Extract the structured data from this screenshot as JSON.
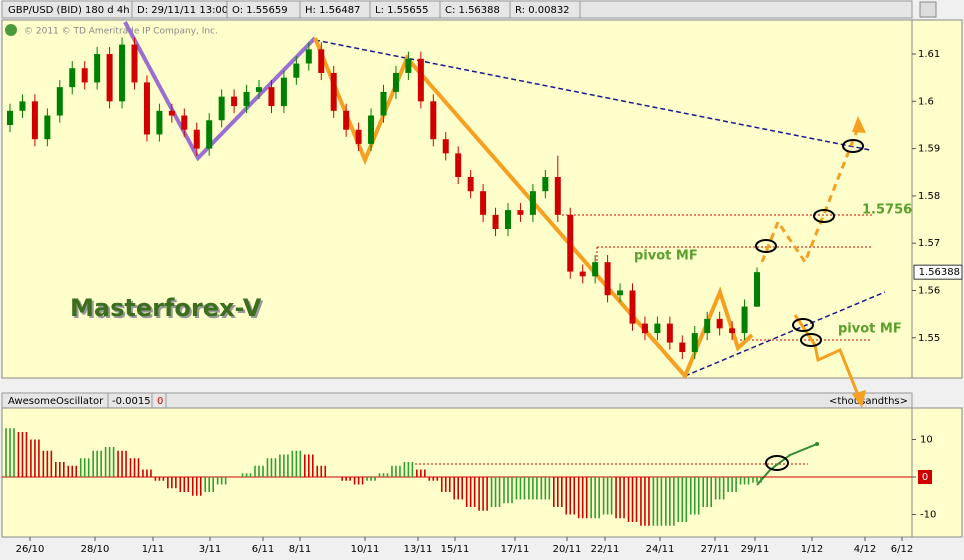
{
  "header": {
    "symbol": "GBP/USD (BID) 180 d 4h",
    "date": "D: 29/11/11 13:00",
    "open": "O: 1.55659",
    "high": "H: 1.56487",
    "low": "L: 1.55655",
    "close": "C: 1.56388",
    "range": "R: 0.00832"
  },
  "copyright": "© 2011 © TD Ameritrade IP Company, Inc.",
  "dates": [
    "26/10",
    "28/10",
    "1/11",
    "3/11",
    "6/11",
    "8/11",
    "10/11",
    "13/11",
    "15/11",
    "17/11",
    "20/11",
    "22/11",
    "24/11",
    "27/11",
    "29/11",
    "1/12",
    "4/12",
    "6/12"
  ],
  "chart_data": [
    {
      "type": "candlestick",
      "open": [
        1.595,
        1.598,
        1.6,
        1.592,
        1.597,
        1.603,
        1.607,
        1.604,
        1.61,
        1.6,
        1.612,
        1.604,
        1.593,
        1.598,
        1.597,
        1.594,
        1.59,
        1.596,
        1.601,
        1.599,
        1.602,
        1.603,
        1.599,
        1.605,
        1.608,
        1.611,
        1.606,
        1.598,
        1.594,
        1.591,
        1.597,
        1.602,
        1.606,
        1.609,
        1.6,
        1.592,
        1.589,
        1.584,
        1.581,
        1.576,
        1.573,
        1.577,
        1.576,
        1.581,
        1.584,
        1.576,
        1.564,
        1.563,
        1.566,
        1.559,
        1.56,
        1.553,
        1.551,
        1.553,
        1.549,
        1.547,
        1.551,
        1.554,
        1.552,
        1.551,
        1.55659
      ],
      "high": [
        1.5995,
        1.6015,
        1.6015,
        1.5985,
        1.6045,
        1.6085,
        1.6085,
        1.6115,
        1.6115,
        1.6135,
        1.6135,
        1.6055,
        1.5995,
        1.5995,
        1.5985,
        1.5955,
        1.5975,
        1.6025,
        1.6025,
        1.6035,
        1.6045,
        1.6045,
        1.6065,
        1.6095,
        1.6125,
        1.6125,
        1.6075,
        1.5995,
        1.5955,
        1.5985,
        1.6035,
        1.6075,
        1.6105,
        1.6105,
        1.6015,
        1.5935,
        1.5905,
        1.5855,
        1.5825,
        1.5775,
        1.5785,
        1.5785,
        1.5825,
        1.5855,
        1.5885,
        1.5775,
        1.5655,
        1.5675,
        1.5675,
        1.5615,
        1.5615,
        1.5545,
        1.5545,
        1.5545,
        1.5505,
        1.5525,
        1.5555,
        1.5555,
        1.5535,
        1.5581,
        1.56487
      ],
      "low": [
        1.5935,
        1.5965,
        1.5905,
        1.5905,
        1.5955,
        1.6015,
        1.6025,
        1.6025,
        1.5985,
        1.5985,
        1.6025,
        1.5915,
        1.5915,
        1.5955,
        1.5925,
        1.5885,
        1.5885,
        1.5945,
        1.5975,
        1.5975,
        1.6005,
        1.5975,
        1.5975,
        1.6035,
        1.6065,
        1.6045,
        1.5965,
        1.5925,
        1.5895,
        1.5895,
        1.5955,
        1.6005,
        1.6045,
        1.5985,
        1.5905,
        1.5875,
        1.5825,
        1.5795,
        1.5745,
        1.5715,
        1.5715,
        1.5745,
        1.5745,
        1.5795,
        1.5745,
        1.5625,
        1.5615,
        1.5615,
        1.5575,
        1.5575,
        1.5515,
        1.5495,
        1.5495,
        1.5475,
        1.5455,
        1.5455,
        1.5495,
        1.5505,
        1.5495,
        1.5495,
        1.55655
      ],
      "close": [
        1.598,
        1.6,
        1.592,
        1.597,
        1.603,
        1.607,
        1.604,
        1.61,
        1.6,
        1.612,
        1.604,
        1.593,
        1.598,
        1.597,
        1.594,
        1.59,
        1.596,
        1.601,
        1.599,
        1.602,
        1.603,
        1.599,
        1.605,
        1.608,
        1.611,
        1.606,
        1.598,
        1.594,
        1.591,
        1.597,
        1.602,
        1.606,
        1.609,
        1.6,
        1.592,
        1.589,
        1.584,
        1.581,
        1.576,
        1.573,
        1.577,
        1.576,
        1.581,
        1.584,
        1.576,
        1.564,
        1.563,
        1.566,
        1.559,
        1.56,
        1.553,
        1.551,
        1.553,
        1.549,
        1.547,
        1.551,
        1.554,
        1.552,
        1.551,
        1.5566,
        1.56388
      ],
      "up_color": "#008000",
      "down_color": "#d00000",
      "ylim": [
        1.5415,
        1.6172
      ],
      "yticks": [
        1.55,
        1.56,
        1.57,
        1.58,
        1.59,
        1.6,
        1.61
      ],
      "last_price_label": "1.56388",
      "annotations": {
        "brand": "Masterforex-V",
        "pivot_upper": "pivot MF",
        "pivot_lower": "pivot MF",
        "level": "1.5756"
      }
    },
    {
      "type": "bar",
      "title": "AwesomeOscillator",
      "value_label": "-0.0015",
      "signal_label": "0",
      "unit_label": "<thousandths>",
      "values": [
        13,
        12,
        10,
        7,
        4,
        3,
        5,
        7,
        8,
        7,
        5,
        2,
        -1,
        -3,
        -4,
        -5,
        -4,
        -2,
        0,
        1,
        3,
        5,
        6,
        7,
        6,
        3,
        0,
        -1,
        -2,
        -1,
        1,
        3,
        4,
        2,
        -1,
        -4,
        -6,
        -8,
        -9,
        -8,
        -7,
        -6,
        -6,
        -6,
        -8,
        -10,
        -11,
        -11,
        -10,
        -11,
        -12,
        -13,
        -13,
        -13,
        -12,
        -10,
        -8,
        -6,
        -4,
        -2,
        -1.5
      ],
      "up_color": "#2e9e2e",
      "down_color": "#d00000",
      "ylim": [
        -16,
        18.4
      ],
      "yticks": [
        -10,
        0,
        10
      ]
    }
  ]
}
